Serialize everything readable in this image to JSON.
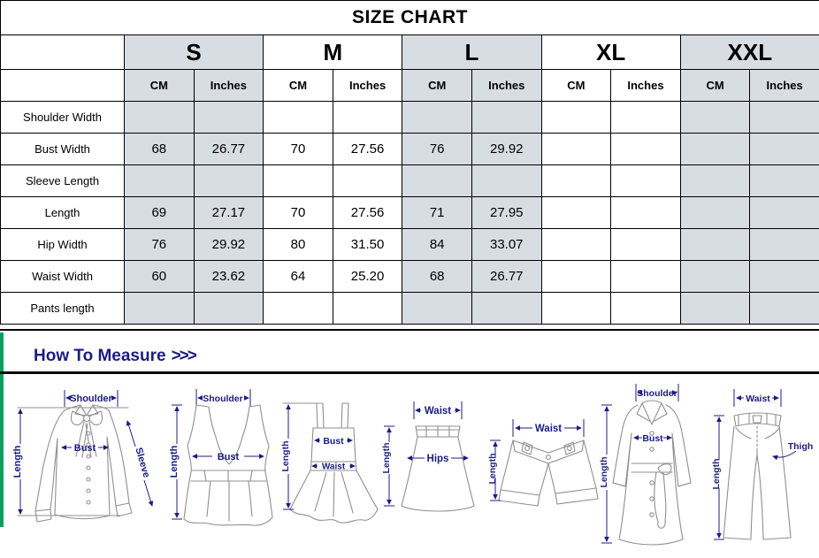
{
  "title": "SIZE CHART",
  "table": {
    "corner": "",
    "sizes": [
      {
        "label": "S",
        "shaded": true
      },
      {
        "label": "M",
        "shaded": false
      },
      {
        "label": "L",
        "shaded": true
      },
      {
        "label": "XL",
        "shaded": false
      },
      {
        "label": "XXL",
        "shaded": true
      }
    ],
    "units": [
      "CM",
      "Inches"
    ],
    "rows": [
      {
        "label": "Shoulder Width",
        "values": [
          "",
          "",
          "",
          "",
          "",
          "",
          "",
          "",
          "",
          ""
        ]
      },
      {
        "label": "Bust Width",
        "values": [
          "68",
          "26.77",
          "70",
          "27.56",
          "76",
          "29.92",
          "",
          "",
          "",
          ""
        ]
      },
      {
        "label": "Sleeve Length",
        "values": [
          "",
          "",
          "",
          "",
          "",
          "",
          "",
          "",
          "",
          ""
        ]
      },
      {
        "label": "Length",
        "values": [
          "69",
          "27.17",
          "70",
          "27.56",
          "71",
          "27.95",
          "",
          "",
          "",
          ""
        ]
      },
      {
        "label": "Hip Width",
        "values": [
          "76",
          "29.92",
          "80",
          "31.50",
          "84",
          "33.07",
          "",
          "",
          "",
          ""
        ]
      },
      {
        "label": "Waist Width",
        "values": [
          "60",
          "23.62",
          "64",
          "25.20",
          "68",
          "26.77",
          "",
          "",
          "",
          ""
        ]
      },
      {
        "label": "Pants length",
        "values": [
          "",
          "",
          "",
          "",
          "",
          "",
          "",
          "",
          "",
          ""
        ]
      }
    ]
  },
  "measure": {
    "heading": "How To Measure",
    "chevrons": ">>>",
    "figures": [
      {
        "name": "blouse",
        "labels": {
          "top": "Shoulder",
          "mid": "Bust",
          "side": "Sleeve",
          "left": "Length"
        }
      },
      {
        "name": "tank-top",
        "labels": {
          "top": "Shoulder",
          "mid": "Bust",
          "left": "Length"
        }
      },
      {
        "name": "dress",
        "labels": {
          "mid": "Bust",
          "mid2": "Waist",
          "left": "Length"
        }
      },
      {
        "name": "skirt",
        "labels": {
          "top": "Waist",
          "mid": "Hips",
          "left": "Length"
        }
      },
      {
        "name": "shorts",
        "labels": {
          "top": "Waist",
          "left": "Length"
        }
      },
      {
        "name": "coat",
        "labels": {
          "top": "Shoulder",
          "mid": "Bust",
          "left": "Length"
        }
      },
      {
        "name": "pants",
        "labels": {
          "top": "Waist",
          "side": "Thigh",
          "left": "Length"
        }
      }
    ]
  },
  "colors": {
    "header_red": "#ff0000",
    "cell_shade": "#d8dce3",
    "navy": "#1c1c80",
    "green_bar": "#0b9f5f",
    "line_gray": "#8f8f8f"
  }
}
